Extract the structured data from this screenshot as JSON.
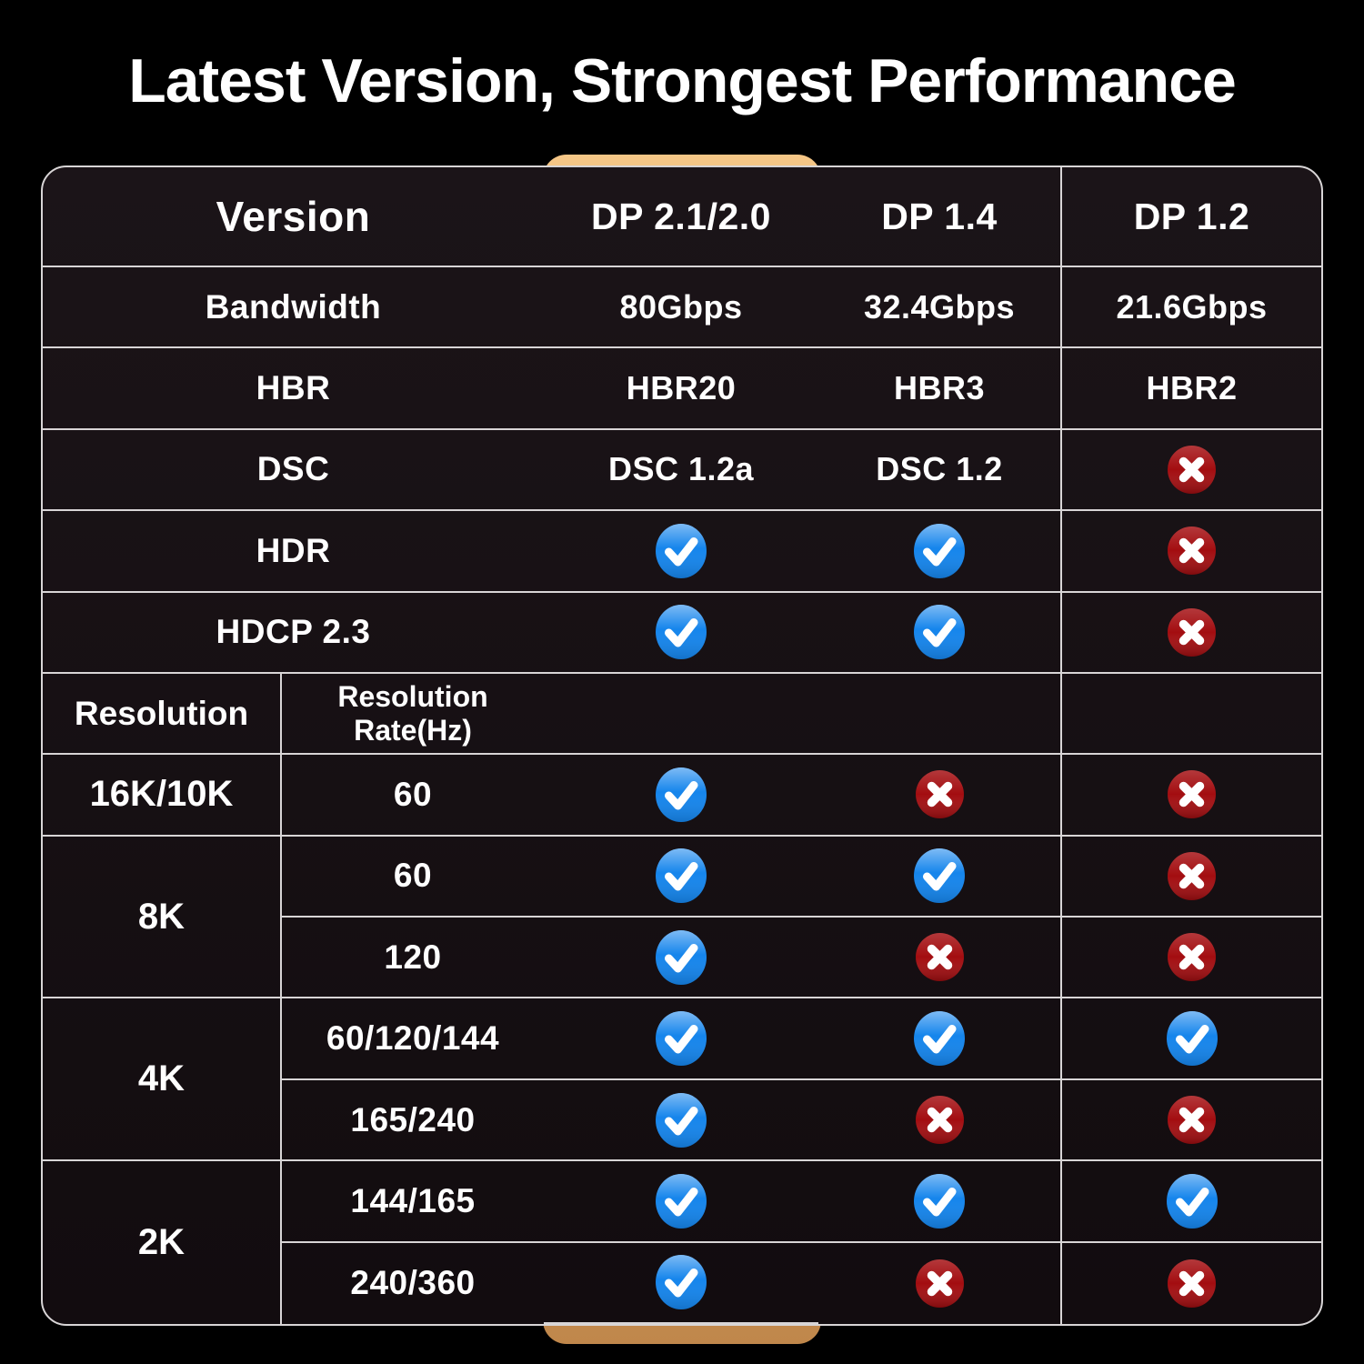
{
  "title": "Latest Version, Strongest Performance",
  "colors": {
    "background": "#000000",
    "grid_line": "#D8D5D6",
    "table_bg_top": "#1B1418",
    "table_bg_bottom": "#120C0F",
    "highlight_top": "#F5C686",
    "highlight_bottom": "#C0874B",
    "check_blue": "#1585EC",
    "cross_red": "#A30D10",
    "text": "#FFFFFF"
  },
  "icons": {
    "check": "check-icon",
    "cross": "cross-icon"
  },
  "table": {
    "header": {
      "version_label": "Version",
      "columns": [
        "DP 2.1/2.0",
        "DP 1.4",
        "DP 1.2"
      ]
    },
    "spec_rows": [
      {
        "label": "Bandwidth",
        "values": [
          "80Gbps",
          "32.4Gbps",
          "21.6Gbps"
        ]
      },
      {
        "label": "HBR",
        "values": [
          "HBR20",
          "HBR3",
          "HBR2"
        ]
      },
      {
        "label": "DSC",
        "values": [
          "DSC 1.2a",
          "DSC 1.2",
          "cross"
        ]
      },
      {
        "label": "HDR",
        "values": [
          "check",
          "check",
          "cross"
        ]
      },
      {
        "label": "HDCP 2.3",
        "values": [
          "check",
          "check",
          "cross"
        ]
      }
    ],
    "resolution_header": {
      "col1": "Resolution",
      "col2": "Resolution Rate(Hz)"
    },
    "resolution_rows": [
      {
        "resolution": "16K/10K",
        "rates": [
          {
            "rate": "60",
            "values": [
              "check",
              "cross",
              "cross"
            ]
          }
        ]
      },
      {
        "resolution": "8K",
        "rates": [
          {
            "rate": "60",
            "values": [
              "check",
              "check",
              "cross"
            ]
          },
          {
            "rate": "120",
            "values": [
              "check",
              "cross",
              "cross"
            ]
          }
        ]
      },
      {
        "resolution": "4K",
        "rates": [
          {
            "rate": "60/120/144",
            "values": [
              "check",
              "check",
              "check"
            ]
          },
          {
            "rate": "165/240",
            "values": [
              "check",
              "cross",
              "cross"
            ]
          }
        ]
      },
      {
        "resolution": "2K",
        "rates": [
          {
            "rate": "144/165",
            "values": [
              "check",
              "check",
              "check"
            ]
          },
          {
            "rate": "240/360",
            "values": [
              "check",
              "cross",
              "cross"
            ]
          }
        ]
      }
    ]
  },
  "chart_data": {
    "type": "table",
    "title": "Latest Version, Strongest Performance",
    "columns": [
      "Version",
      "DP 2.1/2.0",
      "DP 1.4",
      "DP 1.2"
    ],
    "rows": [
      [
        "Bandwidth",
        "80Gbps",
        "32.4Gbps",
        "21.6Gbps"
      ],
      [
        "HBR",
        "HBR20",
        "HBR3",
        "HBR2"
      ],
      [
        "DSC",
        "DSC 1.2a",
        "DSC 1.2",
        "✗"
      ],
      [
        "HDR",
        "✓",
        "✓",
        "✗"
      ],
      [
        "HDCP 2.3",
        "✓",
        "✓",
        "✗"
      ],
      [
        "Resolution 16K/10K @ 60Hz",
        "✓",
        "✗",
        "✗"
      ],
      [
        "Resolution 8K @ 60Hz",
        "✓",
        "✓",
        "✗"
      ],
      [
        "Resolution 8K @ 120Hz",
        "✓",
        "✗",
        "✗"
      ],
      [
        "Resolution 4K @ 60/120/144Hz",
        "✓",
        "✓",
        "✓"
      ],
      [
        "Resolution 4K @ 165/240Hz",
        "✓",
        "✗",
        "✗"
      ],
      [
        "Resolution 2K @ 144/165Hz",
        "✓",
        "✓",
        "✓"
      ],
      [
        "Resolution 2K @ 240/360Hz",
        "✓",
        "✗",
        "✗"
      ]
    ],
    "legend": {
      "highlighted_column": "DP 2.1/2.0"
    }
  }
}
